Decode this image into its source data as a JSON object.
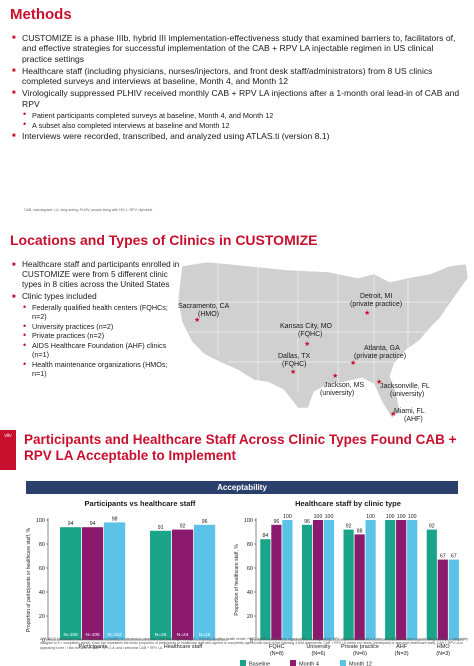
{
  "methods": {
    "title": "Methods",
    "bullets": [
      "CUSTOMIZE is a phase IIIb, hybrid III implementation-effectiveness study that examined barriers to, facilitators of, and effective strategies for successful implementation of the CAB + RPV LA injectable regimen in US clinical practice settings",
      "Healthcare staff (including physicians, nurses/injectors, and front desk staff/administrators) from 8 US clinics completed surveys and interviews at baseline, Month 4, and Month 12",
      "Virologically suppressed PLHIV received monthly CAB + RPV LA injections after a 1-month oral lead-in of CAB and RPV"
    ],
    "sub_bullets": [
      "Patient participants completed surveys at baseline, Month 4, and Month 12",
      "A subset also completed interviews at baseline and Month 12"
    ],
    "last_bullet": "Interviews were recorded, transcribed, and analyzed using ATLAS.ti (version 8.1)",
    "footnote": "CAB, cabotegravir; LA, long-acting; PLHIV, people living with HIV-1; RPV, rilpivirine."
  },
  "locations": {
    "title": "Locations and Types of Clinics in CUSTOMIZE",
    "bullet1": "Healthcare staff and participants enrolled in CUSTOMIZE were from 5 different clinic types in 8 cities across the United States",
    "bullet2": "Clinic types included",
    "clinic_types": [
      "Federally qualified health centers (FQHCs; n=2)",
      "University practices (n=2)",
      "Private practices (n=2)",
      "AIDS Healthcare Foundation (AHF) clinics (n=1)",
      "Health maintenance organizations (HMOs; n=1)"
    ],
    "cities": [
      {
        "name": "Sacramento, CA",
        "type": "(HMO)"
      },
      {
        "name": "Detroit, MI",
        "type": "(private practice)"
      },
      {
        "name": "Kansas City, MO",
        "type": "(FQHC)"
      },
      {
        "name": "Atlanta, GA",
        "type": "(private practice)"
      },
      {
        "name": "Dallas, TX",
        "type": "(FQHC)"
      },
      {
        "name": "Jackson, MS",
        "type": "(university)"
      },
      {
        "name": "Jacksonville, FL",
        "type": "(university)"
      },
      {
        "name": "Miami, FL",
        "type": "(AHF)"
      }
    ]
  },
  "results": {
    "title": "Participants and Healthcare Staff Across Clinic Types Found CAB + RPV LA Acceptable to Implement",
    "logo_text": "viiv",
    "acceptability_label": "Acceptability",
    "ylabel_left": "Proportion of participants or healthcare staff, %",
    "ylabel_right": "Proportion of healthcare staff, %",
    "footnote": "AHF, AIDS Healthcare Foundation; AIM, acceptability of intervention measure; CAB, cabotegravir; FQHC, federally qualified health center; HMO, health maintenance organization; LA, long-acting; RPV, rilpivirine. AIM was a 4-item survey that utilized a 5-point rating scale (1 = completely disagree to 5 = completely agree). Each bar represents the mean proportion of participants or healthcare staff who agreed or completely agreed with each of the following 4 AIM statements: CAB + RPV LA meets my needs (participant) or approval (healthcare staff); CAB + RPV LA is appealing to me / I like the idea of CAB + RPV LA; and I welcome CAB + RPV LA."
  },
  "chart_data": [
    {
      "type": "bar",
      "title": "Participants vs healthcare staff",
      "categories": [
        "Participants",
        "Healthcare staff"
      ],
      "ylabel": "Proportion of participants or healthcare staff, %",
      "ylim": [
        0,
        100
      ],
      "yticks": [
        0,
        20,
        40,
        60,
        80,
        100
      ],
      "series": [
        {
          "name": "Baseline",
          "values": [
            94,
            91
          ],
          "n": [
            "N=109",
            "N=26"
          ]
        },
        {
          "name": "Month 4",
          "values": [
            94,
            92
          ],
          "n": [
            "N=105",
            "N=24"
          ]
        },
        {
          "name": "Month 12",
          "values": [
            98,
            96
          ],
          "n": [
            "N=102",
            "N=25"
          ]
        }
      ]
    },
    {
      "type": "bar",
      "title": "Healthcare staff by clinic type",
      "categories": [
        "FQHC\n(N=8)",
        "University\n(N=6)",
        "Private practice\n(N=6)",
        "AHF\n(N=3)",
        "HMO\n(N=3)"
      ],
      "category_names": [
        "FQHC",
        "University",
        "Private practice",
        "AHF",
        "HMO"
      ],
      "category_ns": [
        "(N=8)",
        "(N=6)",
        "(N=6)",
        "(N=3)",
        "(N=3)"
      ],
      "ylabel": "Proportion of healthcare staff, %",
      "ylim": [
        0,
        100
      ],
      "yticks": [
        0,
        20,
        40,
        60,
        80,
        100
      ],
      "series": [
        {
          "name": "Baseline",
          "values": [
            84,
            96,
            92,
            100,
            92
          ]
        },
        {
          "name": "Month 4",
          "values": [
            96,
            100,
            88,
            100,
            67
          ]
        },
        {
          "name": "Month 12",
          "values": [
            100,
            100,
            100,
            100,
            67
          ]
        }
      ]
    }
  ],
  "legend": [
    {
      "name": "Baseline",
      "color": "#1aa58a"
    },
    {
      "name": "Month 4",
      "color": "#8b1a6e"
    },
    {
      "name": "Month 12",
      "color": "#5bc3e8"
    }
  ],
  "colors": {
    "accent": "#c8102e",
    "acceptability_bar": "#2a3f6b",
    "map_land": "#d0d0d0",
    "map_marker": "#c8102e"
  }
}
